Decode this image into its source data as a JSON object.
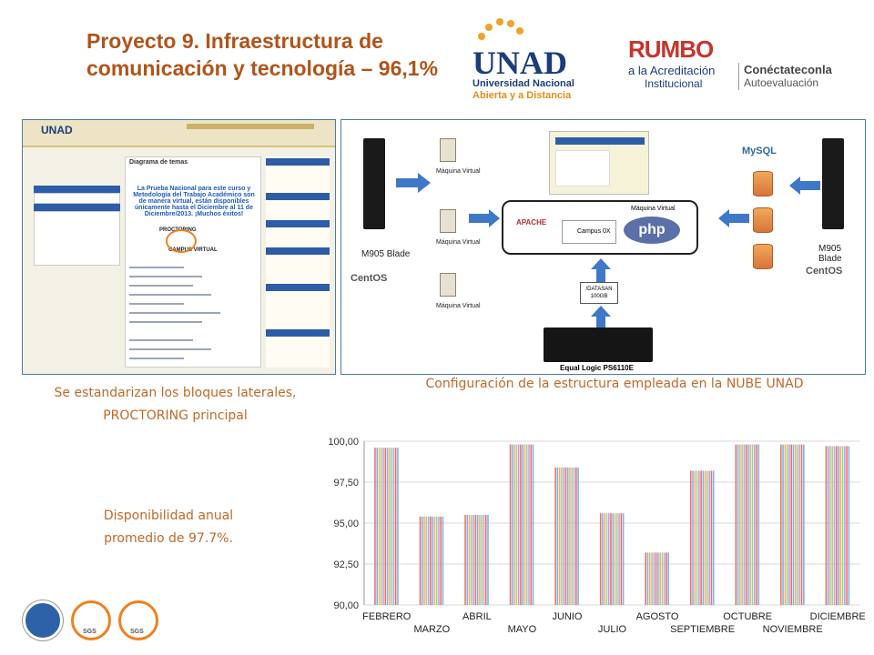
{
  "slide": {
    "title": "Proyecto 9. Infraestructura de comunicación y tecnología – 96,1%",
    "caption_left": "Se estandarizan los bloques laterales, PROCTORING principal",
    "caption_right": "Configuración de la estructura empleada en la NUBE UNAD",
    "caption_availability": "Disponibilidad anual promedio de 97.7%."
  },
  "logos": {
    "unad_main": "UNAD",
    "unad_line1": "Universidad Nacional",
    "unad_line2": "Abierta y a Distancia",
    "rumbo": "RUMBO",
    "rumbo_line1": "a la Acreditación",
    "rumbo_line2": "Institucional",
    "rumbo_line3": "Conéctateconla",
    "rumbo_line4": "Autoevaluación",
    "footer_sgs1": "SGS",
    "footer_sgs2": "SGS"
  },
  "screenshot_left": {
    "unad_logo": "UNAD",
    "diagram_title": "Diagrama de temas",
    "notice": "La Prueba Nacional para este curso y Metodología del Trabajo Académico son de manera virtual, están disponibles únicamente hasta el Diciembre al 11 de Diciembre/2013. ¡Muchos éxitos!",
    "proctoring_label": "PROCTORING",
    "campus_virtual": "CAMPUS VIRTUAL"
  },
  "screenshot_right": {
    "vm_label": "Máquina Virtual",
    "server_label_1": "M905 Blade",
    "server_label_2": "M905 Blade",
    "centos": "CentOS",
    "mysql": "MySQL",
    "apache": "APACHE",
    "campus": "Campus 0X",
    "php": "php",
    "datasan": "/DATASAN 100GB",
    "storage_label": "Equal Logic PS6110E"
  },
  "chart_data": {
    "type": "bar",
    "categories": [
      "FEBRERO",
      "MARZO",
      "ABRIL",
      "MAYO",
      "JUNIO",
      "JULIO",
      "AGOSTO",
      "SEPTIEMBRE",
      "OCTUBRE",
      "NOVIEMBRE",
      "DICIEMBRE"
    ],
    "values": [
      99.6,
      95.4,
      95.5,
      99.8,
      98.4,
      95.6,
      93.2,
      98.2,
      99.8,
      99.8,
      99.7
    ],
    "ylim": [
      90,
      100
    ],
    "yticks": [
      "90,00",
      "92,50",
      "95,00",
      "97,50",
      "100,00"
    ],
    "ytick_values": [
      90,
      92.5,
      95,
      97.5,
      100
    ],
    "grid": true,
    "colors": [
      "#e8736b",
      "#7eb5e8",
      "#f1b26a",
      "#9fd29a",
      "#c9a0dc"
    ]
  }
}
